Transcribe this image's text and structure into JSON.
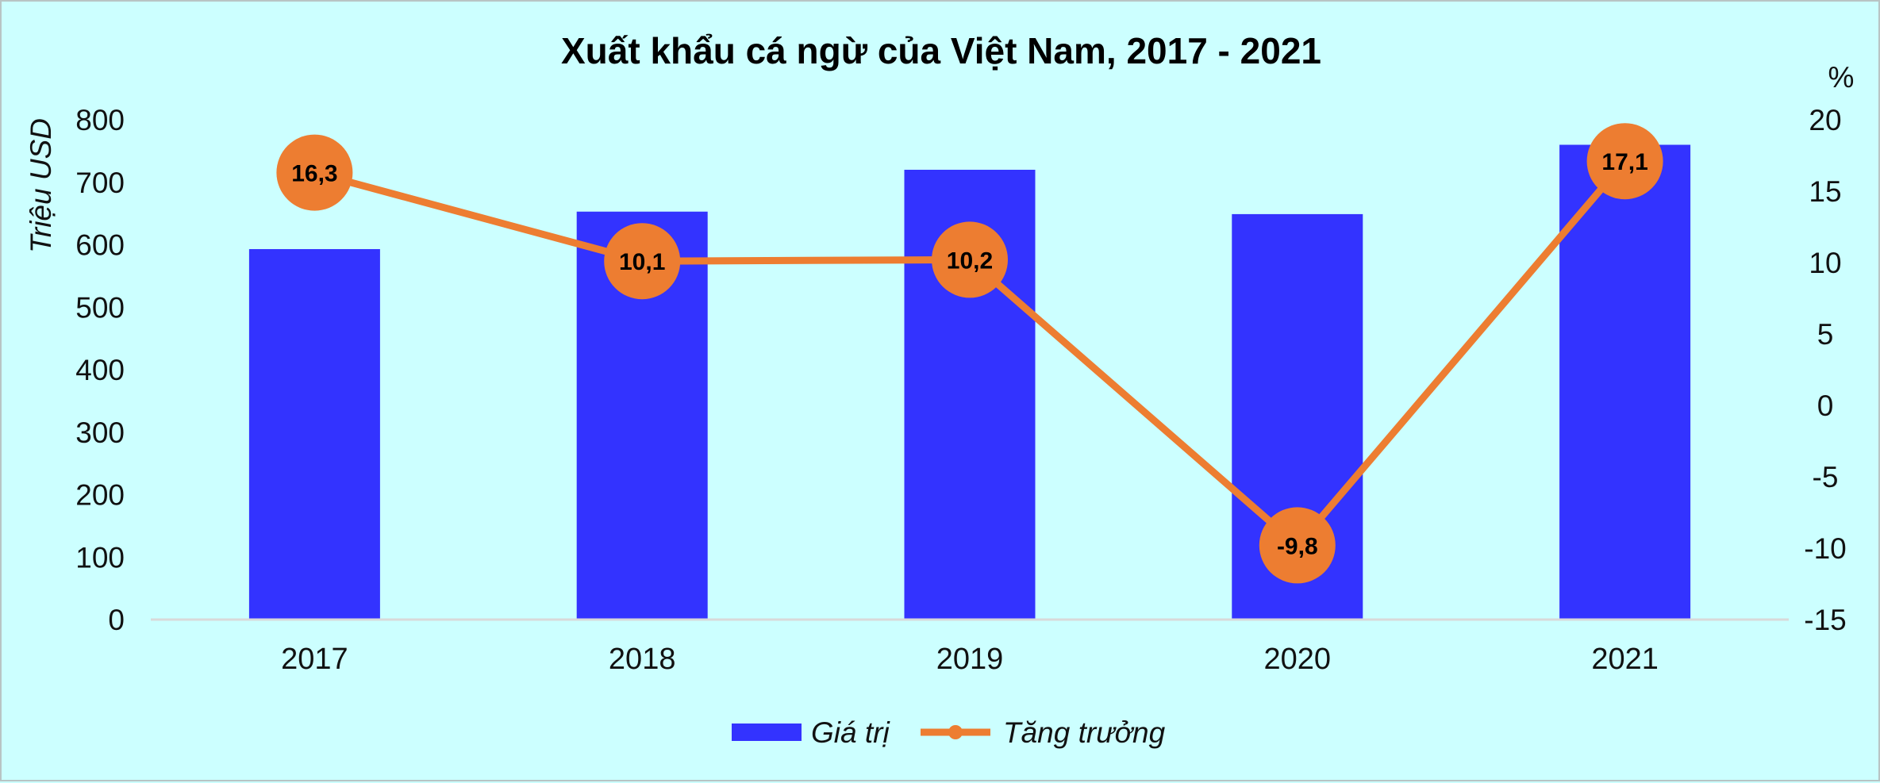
{
  "chart_data": {
    "type": "bar+line",
    "title": "Xuất khẩu cá ngừ của Việt Nam, 2017 - 2021",
    "categories": [
      "2017",
      "2018",
      "2019",
      "2020",
      "2021"
    ],
    "series": [
      {
        "name": "Giá trị",
        "type": "bar",
        "axis": "left",
        "values": [
          593,
          653,
          720,
          649,
          760
        ],
        "color": "#3333ff"
      },
      {
        "name": "Tăng trưởng",
        "type": "line",
        "axis": "right",
        "values": [
          16.3,
          10.1,
          10.2,
          -9.8,
          17.1
        ],
        "labels": [
          "16,3",
          "10,1",
          "10,2",
          "-9,8",
          "17,1"
        ],
        "color": "#ed7d31"
      }
    ],
    "y_left": {
      "label": "Triệu USD",
      "min": 0,
      "max": 800,
      "ticks": [
        "0",
        "100",
        "200",
        "300",
        "400",
        "500",
        "600",
        "700",
        "800"
      ]
    },
    "y_right": {
      "label": "%",
      "min": -15,
      "max": 20,
      "ticks": [
        "-15",
        "-10",
        "-5",
        "0",
        "5",
        "10",
        "15",
        "20"
      ]
    },
    "grid": false,
    "legend": "bottom"
  }
}
